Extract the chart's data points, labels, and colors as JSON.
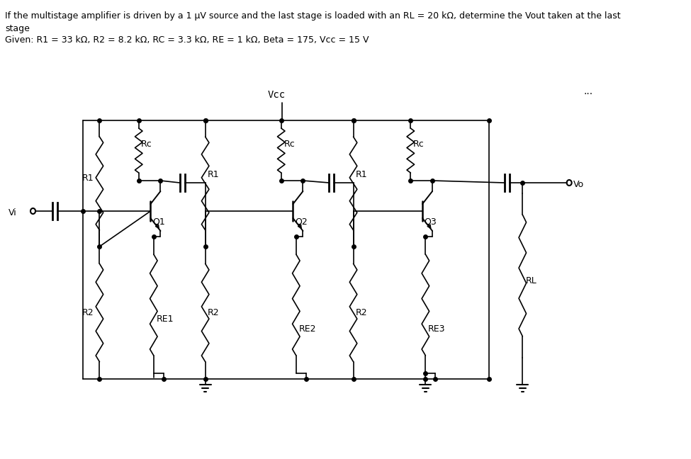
{
  "title_line1": "If the multistage amplifier is driven by a 1 μV source and the last stage is loaded with an RL = 20 kΩ, determine the Vout taken at the last",
  "title_line2": "stage",
  "title_line3": "Given: R1 = 33 kΩ, R2 = 8.2 kΩ, RC = 3.3 kΩ, RE = 1 kΩ, Beta = 175, Vcc = 15 V",
  "bg_color": "#ffffff",
  "line_color": "#000000",
  "text_color": "#000000",
  "dots": "...",
  "vcc_label": "Vcc",
  "vi_label": "Vi",
  "vo_label": "Vo",
  "rl_label": "RL",
  "q1_label": "Q1",
  "q2_label": "Q2",
  "q3_label": "Q3",
  "r1_label": "R1",
  "r2_label": "R2",
  "rc_label": "Rc",
  "re1_label": "RE1",
  "re2_label": "RE2",
  "re3_label": "RE3"
}
